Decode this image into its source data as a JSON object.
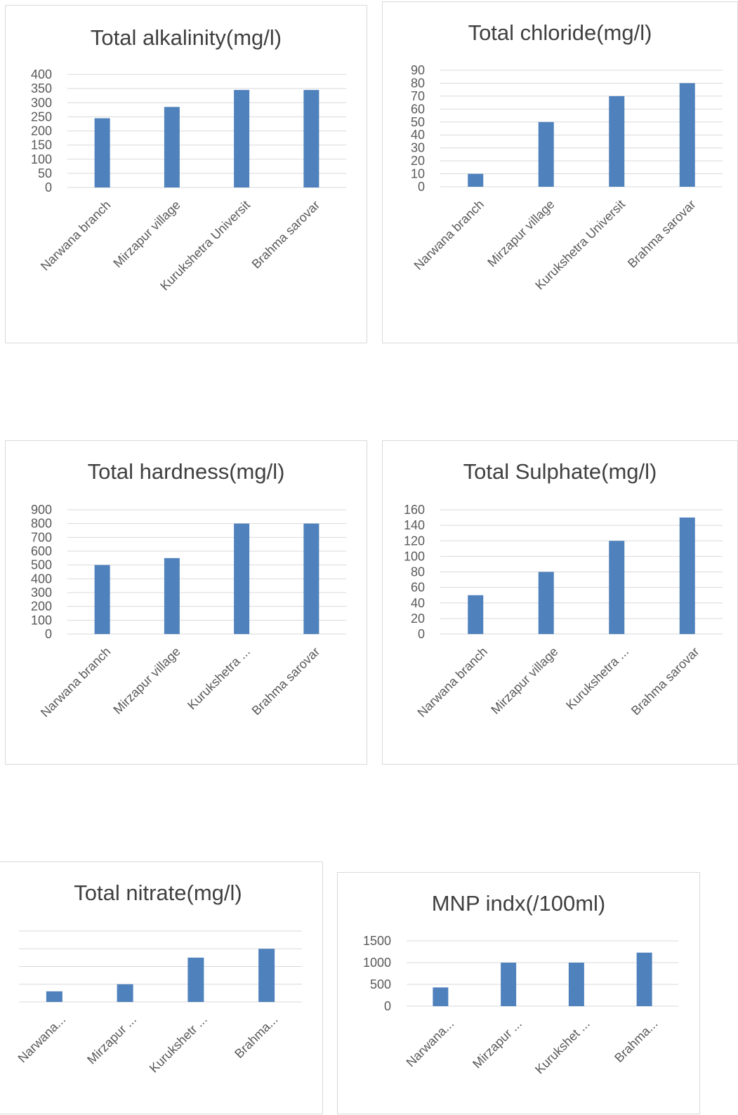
{
  "colors": {
    "bar": "#4f81bd",
    "grid": "#d9d9d9",
    "text": "#595959",
    "title": "#404040"
  },
  "chart_data": [
    {
      "type": "bar",
      "title": "Total alkalinity(mg/l)",
      "categories": [
        "Narwana branch",
        "Mirzapur village",
        "Kurukshetra Universit",
        "Brahma sarovar"
      ],
      "values": [
        245,
        285,
        345,
        345
      ],
      "yticks": [
        0,
        50,
        100,
        150,
        200,
        250,
        300,
        350,
        400
      ],
      "ylim": [
        0,
        400
      ],
      "grid": true
    },
    {
      "type": "bar",
      "title": "Total chloride(mg/l)",
      "categories": [
        "Narwana branch",
        "Mirzapur village",
        "Kurukshetra Universit",
        "Brahma sarovar"
      ],
      "values": [
        10,
        50,
        70,
        80
      ],
      "yticks": [
        0,
        10,
        20,
        30,
        40,
        50,
        60,
        70,
        80,
        90
      ],
      "ylim": [
        0,
        90
      ],
      "grid": true
    },
    {
      "type": "bar",
      "title": "Total hardness(mg/l)",
      "categories": [
        "Narwana branch",
        "Mirzapur village",
        "Kurukshetra ...",
        "Brahma sarovar"
      ],
      "values": [
        500,
        550,
        800,
        800
      ],
      "yticks": [
        0,
        100,
        200,
        300,
        400,
        500,
        600,
        700,
        800,
        900
      ],
      "ylim": [
        0,
        900
      ],
      "grid": true
    },
    {
      "type": "bar",
      "title": "Total Sulphate(mg/l)",
      "categories": [
        "Narwana branch",
        "Mirzapur village",
        "Kurukshetra ...",
        "Brahma sarovar"
      ],
      "values": [
        50,
        80,
        120,
        150
      ],
      "yticks": [
        0,
        20,
        40,
        60,
        80,
        100,
        120,
        140,
        160
      ],
      "ylim": [
        0,
        160
      ],
      "grid": true
    },
    {
      "type": "bar",
      "title": "Total nitrate(mg/l)",
      "categories": [
        "Narwana...",
        "Mirzapur ...",
        "Kurukshetr ...",
        "Brahma..."
      ],
      "values": [
        0.6,
        1.0,
        2.5,
        3.0
      ],
      "yticks": [],
      "ylim": [
        0,
        4
      ],
      "grid": true
    },
    {
      "type": "bar",
      "title": "MNP indx(/100ml)",
      "categories": [
        "Narwana...",
        "Mirzapur ...",
        "Kurukshet ...",
        "Brahma..."
      ],
      "values": [
        430,
        1000,
        1000,
        1230
      ],
      "yticks": [
        0,
        500,
        1000,
        1500
      ],
      "ylim": [
        0,
        1500
      ],
      "grid": true
    }
  ]
}
